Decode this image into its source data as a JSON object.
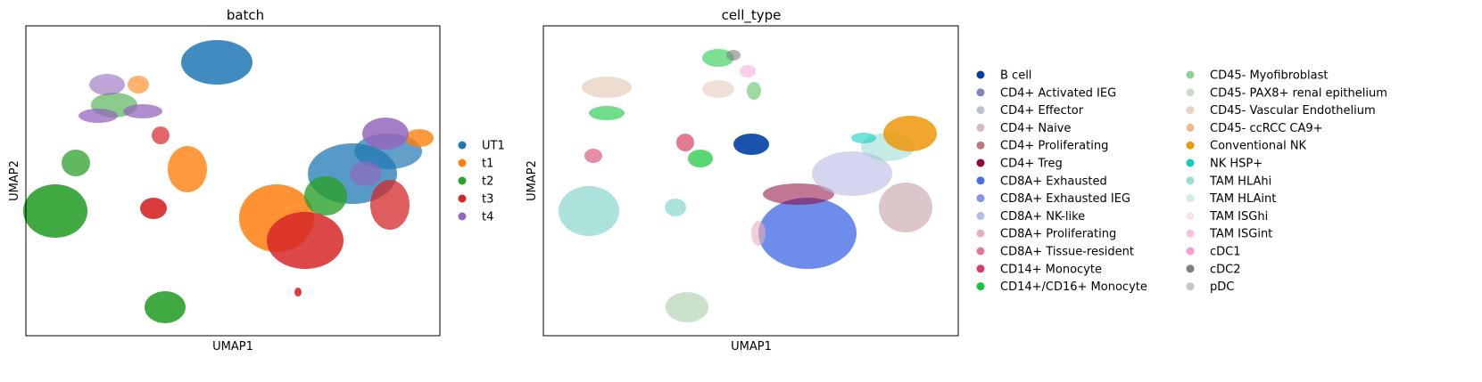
{
  "chart_data": [
    {
      "type": "scatter",
      "title": "batch",
      "xlabel": "UMAP1",
      "ylabel": "UMAP2",
      "ticks": "none",
      "legend_location": "right",
      "legend": [
        {
          "label": "UT1",
          "color": "#1f77b4"
        },
        {
          "label": "t1",
          "color": "#ff7f0e"
        },
        {
          "label": "t2",
          "color": "#2ca02c"
        },
        {
          "label": "t3",
          "color": "#d62728"
        },
        {
          "label": "t4",
          "color": "#9467bd"
        }
      ]
    },
    {
      "type": "scatter",
      "title": "cell_type",
      "xlabel": "UMAP1",
      "ylabel": "UMAP2",
      "ticks": "none",
      "legend_location": "right",
      "legend_columns": 2,
      "legend": [
        {
          "label": "B cell",
          "color": "#023fa5"
        },
        {
          "label": "CD4+ Activated IEG",
          "color": "#7d87b9"
        },
        {
          "label": "CD4+ Effector",
          "color": "#bec1d4"
        },
        {
          "label": "CD4+ Naive",
          "color": "#d6bcc0"
        },
        {
          "label": "CD4+ Proliferating",
          "color": "#bb7784"
        },
        {
          "label": "CD4+ Treg",
          "color": "#8e063b"
        },
        {
          "label": "CD8A+ Exhausted",
          "color": "#4a6fe3"
        },
        {
          "label": "CD8A+ Exhausted IEG",
          "color": "#8595e1"
        },
        {
          "label": "CD8A+ NK-like",
          "color": "#b5bbe3"
        },
        {
          "label": "CD8A+ Proliferating",
          "color": "#e6afb9"
        },
        {
          "label": "CD8A+ Tissue-resident",
          "color": "#e07b91"
        },
        {
          "label": "CD14+ Monocyte",
          "color": "#d33f6a"
        },
        {
          "label": "CD14+/CD16+ Monocyte",
          "color": "#11c638"
        },
        {
          "label": "CD45- Myofibroblast",
          "color": "#8dd593"
        },
        {
          "label": "CD45- PAX8+ renal epithelium",
          "color": "#c6dec7"
        },
        {
          "label": "CD45- Vascular Endothelium",
          "color": "#ead3c6"
        },
        {
          "label": "CD45- ccRCC CA9+",
          "color": "#f0b98d"
        },
        {
          "label": "Conventional NK",
          "color": "#ef9708"
        },
        {
          "label": "NK HSP+",
          "color": "#0fcfc0"
        },
        {
          "label": "TAM HLAhi",
          "color": "#9cded6"
        },
        {
          "label": "TAM HLAint",
          "color": "#d5eae7"
        },
        {
          "label": "TAM ISGhi",
          "color": "#f3e1eb"
        },
        {
          "label": "TAM ISGint",
          "color": "#f6c4e1"
        },
        {
          "label": "cDC1",
          "color": "#f79cd4"
        },
        {
          "label": "cDC2",
          "color": "#7f7f7f"
        },
        {
          "label": "pDC",
          "color": "#c7c7c7"
        }
      ]
    }
  ]
}
